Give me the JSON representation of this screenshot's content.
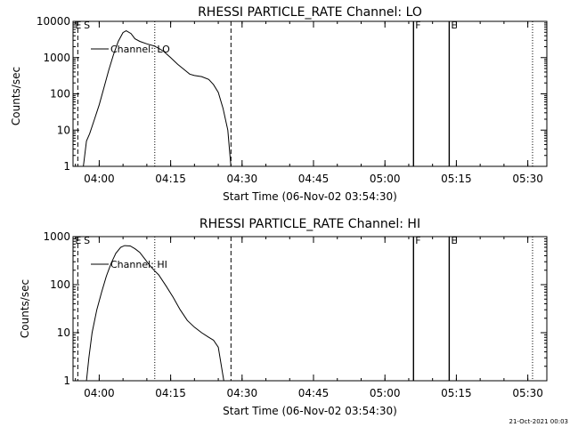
{
  "chart_data": [
    {
      "type": "line",
      "title": "RHESSI PARTICLE_RATE Channel: LO",
      "xlabel": "Start Time (06-Nov-02 03:54:30)",
      "ylabel": "Counts/sec",
      "yscale": "log",
      "ylim": [
        1,
        10000
      ],
      "xlim": [
        "03:54:30",
        "05:34:00"
      ],
      "grid": false,
      "legend_position": "top-left",
      "x_ticks": [
        "04:00",
        "04:15",
        "04:30",
        "04:45",
        "05:00",
        "05:15",
        "05:30"
      ],
      "y_ticks": [
        "1",
        "10",
        "100",
        "1000",
        "10000"
      ],
      "markers": [
        {
          "label": "E",
          "time": "03:55:30"
        },
        {
          "label": "S",
          "time": "03:57:20"
        }
      ],
      "series": [
        {
          "name": "Channel: LO",
          "time": [
            "03:56:40",
            "03:57:20",
            "03:58:00",
            "03:59:00",
            "04:00:00",
            "04:01:00",
            "04:02:00",
            "04:03:00",
            "04:04:00",
            "04:05:00",
            "04:05:40",
            "04:06:40",
            "04:07:30",
            "04:08:30",
            "04:10:00",
            "04:11:30",
            "04:12:30",
            "04:13:30",
            "04:15:00",
            "04:16:30",
            "04:18:00",
            "04:19:00",
            "04:20:00",
            "04:21:30",
            "04:23:00",
            "04:24:00",
            "04:25:00",
            "04:26:00",
            "04:27:00",
            "04:27:20",
            "04:27:40"
          ],
          "values": [
            1.0,
            5.0,
            8.0,
            20,
            50,
            150,
            450,
            1200,
            2800,
            4900,
            5500,
            4600,
            3300,
            2800,
            2400,
            2100,
            1800,
            1500,
            1000,
            650,
            450,
            350,
            320,
            300,
            250,
            180,
            110,
            40,
            10,
            3,
            1.0
          ]
        }
      ]
    },
    {
      "type": "line",
      "title": "RHESSI PARTICLE_RATE Channel: HI",
      "xlabel": "Start Time (06-Nov-02 03:54:30)",
      "ylabel": "Counts/sec",
      "yscale": "log",
      "ylim": [
        1,
        1000
      ],
      "xlim": [
        "03:54:30",
        "05:34:00"
      ],
      "grid": false,
      "legend_position": "top-left",
      "x_ticks": [
        "04:00",
        "04:15",
        "04:30",
        "04:45",
        "05:00",
        "05:15",
        "05:30"
      ],
      "y_ticks": [
        "1",
        "10",
        "100",
        "1000"
      ],
      "markers": [
        {
          "label": "E",
          "time": "03:55:30"
        },
        {
          "label": "S",
          "time": "03:57:20"
        }
      ],
      "series": [
        {
          "name": "Channel: HI",
          "time": [
            "03:57:20",
            "03:57:50",
            "03:58:30",
            "03:59:30",
            "04:00:30",
            "04:01:30",
            "04:02:30",
            "04:03:30",
            "04:04:30",
            "04:05:20",
            "04:06:30",
            "04:07:30",
            "04:08:30",
            "04:09:30",
            "04:10:30",
            "04:11:30",
            "04:12:30",
            "04:14:00",
            "04:15:30",
            "04:17:00",
            "04:18:30",
            "04:20:00",
            "04:21:30",
            "04:23:00",
            "04:24:00",
            "04:25:00",
            "04:25:40",
            "04:26:10"
          ],
          "values": [
            1.0,
            3.0,
            10,
            30,
            70,
            150,
            280,
            450,
            600,
            650,
            640,
            560,
            470,
            350,
            260,
            200,
            160,
            95,
            55,
            30,
            18,
            13,
            10,
            8,
            7,
            5,
            2,
            1.0
          ]
        }
      ]
    }
  ],
  "footer": {
    "timestamp": "21-Oct-2021 00:03"
  }
}
